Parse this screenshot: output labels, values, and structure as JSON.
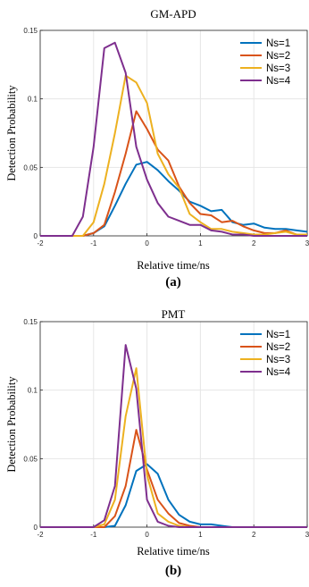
{
  "colors": {
    "Ns=1": "#0072BD",
    "Ns=2": "#D95319",
    "Ns=3": "#EDB120",
    "Ns=4": "#7E2F8E"
  },
  "chart_data": [
    {
      "type": "line",
      "title": "GM-APD",
      "xlabel": "Relative time/ns",
      "ylabel": "Detection Probability",
      "panel_label": "(a)",
      "xlim": [
        -2,
        3
      ],
      "ylim": [
        0,
        0.15
      ],
      "xticks": [
        "-2",
        "-1",
        "0",
        "1",
        "2",
        "3"
      ],
      "yticks": [
        "0",
        "0.05",
        "0.1",
        "0.15"
      ],
      "grid": true,
      "legend": "top-right",
      "x": [
        -2.0,
        -1.8,
        -1.6,
        -1.4,
        -1.2,
        -1.0,
        -0.8,
        -0.6,
        -0.4,
        -0.2,
        0.0,
        0.2,
        0.4,
        0.6,
        0.8,
        1.0,
        1.2,
        1.4,
        1.6,
        1.8,
        2.0,
        2.2,
        2.4,
        2.6,
        2.8,
        3.0
      ],
      "series": [
        {
          "name": "Ns=1",
          "values": [
            0.0,
            0.0,
            0.0,
            0.0,
            0.0,
            0.002,
            0.007,
            0.022,
            0.038,
            0.052,
            0.054,
            0.048,
            0.04,
            0.033,
            0.025,
            0.022,
            0.018,
            0.019,
            0.01,
            0.008,
            0.009,
            0.006,
            0.005,
            0.005,
            0.004,
            0.003
          ]
        },
        {
          "name": "Ns=2",
          "values": [
            0.0,
            0.0,
            0.0,
            0.0,
            0.0,
            0.002,
            0.008,
            0.032,
            0.06,
            0.091,
            0.078,
            0.063,
            0.055,
            0.036,
            0.024,
            0.016,
            0.015,
            0.01,
            0.011,
            0.007,
            0.004,
            0.002,
            0.002,
            0.004,
            0.001,
            0.001
          ]
        },
        {
          "name": "Ns=3",
          "values": [
            0.0,
            0.0,
            0.0,
            0.0,
            0.0,
            0.01,
            0.038,
            0.075,
            0.117,
            0.112,
            0.097,
            0.06,
            0.045,
            0.035,
            0.016,
            0.01,
            0.005,
            0.005,
            0.003,
            0.002,
            0.001,
            0.001,
            0.002,
            0.003,
            0.001,
            0.001
          ]
        },
        {
          "name": "Ns=4",
          "values": [
            0.0,
            0.0,
            0.0,
            0.0,
            0.014,
            0.065,
            0.137,
            0.141,
            0.119,
            0.065,
            0.041,
            0.024,
            0.014,
            0.011,
            0.008,
            0.008,
            0.004,
            0.003,
            0.001,
            0.001,
            0.0,
            0.0,
            0.0,
            0.0,
            0.0,
            0.0
          ]
        }
      ]
    },
    {
      "type": "line",
      "title": "PMT",
      "xlabel": "Relative time/ns",
      "ylabel": "Detection Probability",
      "panel_label": "(b)",
      "xlim": [
        -2,
        3
      ],
      "ylim": [
        0,
        0.15
      ],
      "xticks": [
        "-2",
        "-1",
        "0",
        "1",
        "2",
        "3"
      ],
      "yticks": [
        "0",
        "0.05",
        "0.1",
        "0.15"
      ],
      "grid": true,
      "legend": "top-right",
      "x": [
        -2.0,
        -1.8,
        -1.6,
        -1.4,
        -1.2,
        -1.0,
        -0.8,
        -0.6,
        -0.4,
        -0.2,
        0.0,
        0.2,
        0.4,
        0.6,
        0.8,
        1.0,
        1.2,
        1.4,
        1.6,
        1.8,
        2.0,
        2.2,
        2.4,
        2.6,
        2.8,
        3.0
      ],
      "series": [
        {
          "name": "Ns=1",
          "values": [
            0.0,
            0.0,
            0.0,
            0.0,
            0.0,
            0.0,
            0.0,
            0.001,
            0.016,
            0.041,
            0.046,
            0.039,
            0.02,
            0.009,
            0.004,
            0.002,
            0.002,
            0.001,
            0.0,
            0.0,
            0.0,
            0.0,
            0.0,
            0.0,
            0.0,
            0.0
          ]
        },
        {
          "name": "Ns=2",
          "values": [
            0.0,
            0.0,
            0.0,
            0.0,
            0.0,
            0.0,
            0.0,
            0.008,
            0.03,
            0.071,
            0.042,
            0.02,
            0.01,
            0.003,
            0.001,
            0.0,
            0.0,
            0.0,
            0.0,
            0.0,
            0.0,
            0.0,
            0.0,
            0.0,
            0.0,
            0.0
          ]
        },
        {
          "name": "Ns=3",
          "values": [
            0.0,
            0.0,
            0.0,
            0.0,
            0.0,
            0.0,
            0.002,
            0.02,
            0.081,
            0.116,
            0.038,
            0.01,
            0.004,
            0.001,
            0.0,
            0.0,
            0.0,
            0.0,
            0.0,
            0.0,
            0.0,
            0.0,
            0.0,
            0.0,
            0.0,
            0.0
          ]
        },
        {
          "name": "Ns=4",
          "values": [
            0.0,
            0.0,
            0.0,
            0.0,
            0.0,
            0.0,
            0.005,
            0.03,
            0.133,
            0.101,
            0.02,
            0.004,
            0.001,
            0.0,
            0.0,
            0.0,
            0.0,
            0.0,
            0.0,
            0.0,
            0.0,
            0.0,
            0.0,
            0.0,
            0.0,
            0.0
          ]
        }
      ]
    }
  ]
}
